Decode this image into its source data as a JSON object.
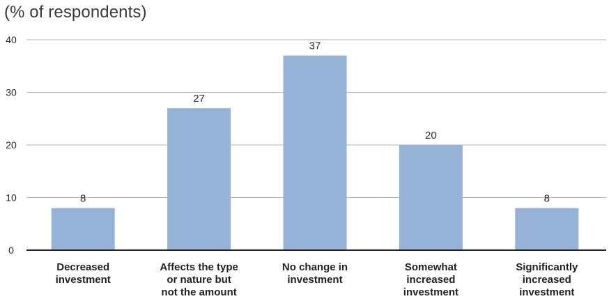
{
  "chart_data": {
    "type": "bar",
    "ylabel": "(% of respondents)",
    "categories": [
      [
        "Decreased",
        "investment"
      ],
      [
        "Affects the type",
        "or nature but",
        "not the amount"
      ],
      [
        "No change in",
        "investment"
      ],
      [
        "Somewhat",
        "increased",
        "investment"
      ],
      [
        "Significantly",
        "increased",
        "investment"
      ]
    ],
    "values": [
      8,
      27,
      37,
      20,
      8
    ],
    "ylim": [
      0,
      40
    ],
    "yticks": [
      0,
      10,
      20,
      30,
      40
    ],
    "grid": true,
    "bar_color": "#95b3d7",
    "grid_color": "#b3b3b3",
    "axis_color": "#222222"
  }
}
